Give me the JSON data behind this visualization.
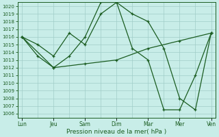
{
  "background_color": "#c8ede8",
  "grid_color": "#a0ccc8",
  "line_color": "#1a5c20",
  "xlabel": "Pression niveau de la mer( hPa )",
  "ylim": [
    1005.5,
    1020.5
  ],
  "yticks": [
    1006,
    1007,
    1008,
    1009,
    1010,
    1011,
    1012,
    1013,
    1014,
    1015,
    1016,
    1017,
    1018,
    1019,
    1020
  ],
  "xtick_labels": [
    "Lun",
    "Jeu",
    "Sam",
    "Dim",
    "Mar",
    "Mer",
    "Ven"
  ],
  "xtick_positions": [
    0,
    14,
    28,
    42,
    56,
    70,
    84
  ],
  "xlim": [
    -2,
    86
  ],
  "line1_x": [
    0,
    7,
    14,
    21,
    28,
    35,
    42,
    49,
    56,
    63,
    70,
    77,
    84
  ],
  "line1_y": [
    1016.0,
    1015.0,
    1013.5,
    1016.5,
    1015.0,
    1019.0,
    1020.5,
    1019.0,
    1018.0,
    1014.5,
    1008.0,
    1006.5,
    1016.5
  ],
  "line2_x": [
    0,
    7,
    14,
    21,
    28,
    35,
    42,
    49,
    56,
    63,
    70,
    77,
    84
  ],
  "line2_y": [
    1016.0,
    1013.5,
    1012.0,
    1013.5,
    1016.0,
    1020.5,
    1020.5,
    1014.5,
    1013.0,
    1006.5,
    1006.5,
    1011.0,
    1016.5
  ],
  "line3_x": [
    0,
    14,
    28,
    42,
    56,
    70,
    84
  ],
  "line3_y": [
    1016.0,
    1012.0,
    1012.5,
    1013.0,
    1014.5,
    1015.5,
    1016.5
  ],
  "figsize": [
    3.2,
    2.0
  ],
  "dpi": 100,
  "ylabel_fontsize": 5.0,
  "xlabel_fontsize": 6.5,
  "xtick_fontsize": 5.5,
  "linewidth": 0.9,
  "markersize": 3.5
}
